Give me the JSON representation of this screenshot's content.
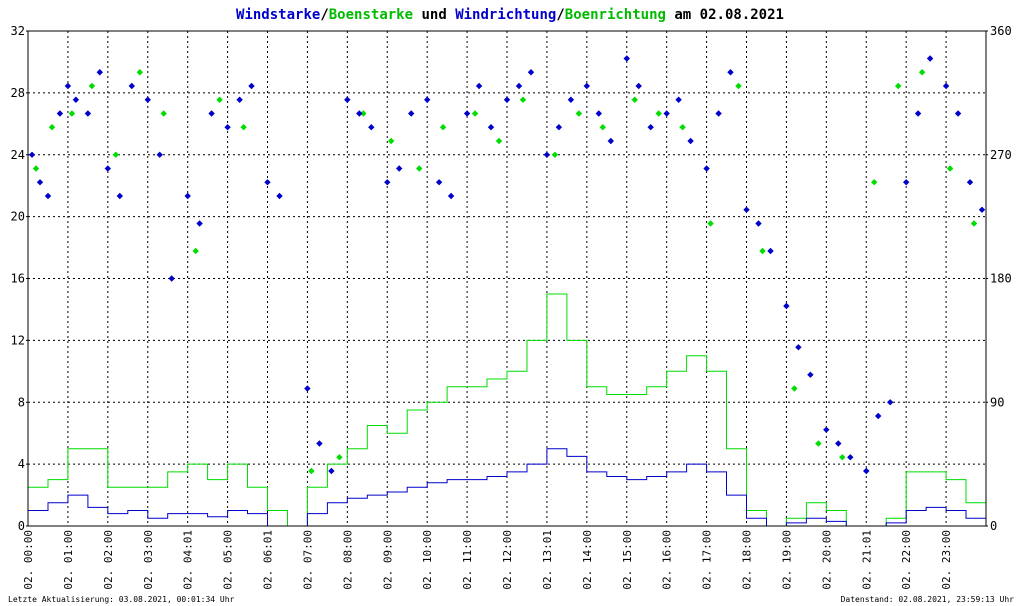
{
  "chart_data": {
    "type": "line",
    "title_parts": [
      {
        "text": "Windstarke",
        "color": "#0000cc"
      },
      {
        "text": "/",
        "color": "#000000"
      },
      {
        "text": "Boenstarke",
        "color": "#00bb00"
      },
      {
        "text": " und ",
        "color": "#000000"
      },
      {
        "text": "Windrichtung",
        "color": "#0000cc"
      },
      {
        "text": "/",
        "color": "#000000"
      },
      {
        "text": "Boenrichtung",
        "color": "#00bb00"
      },
      {
        "text": " am 02.08.2021",
        "color": "#000000"
      }
    ],
    "left_axis": {
      "ticks": [
        "0",
        "4",
        "8",
        "12",
        "16",
        "20",
        "24",
        "28",
        "32"
      ],
      "range": [
        0,
        32
      ]
    },
    "right_axis": {
      "ticks": [
        "0",
        "90",
        "180",
        "270",
        "360"
      ],
      "range": [
        0,
        360
      ]
    },
    "x_ticks": [
      "02. 00:00",
      "02. 01:00",
      "02. 02:00",
      "02. 03:00",
      "02. 04:01",
      "02. 05:00",
      "02. 06:01",
      "02. 07:00",
      "02. 08:00",
      "02. 09:00",
      "02. 10:00",
      "02. 11:00",
      "02. 12:00",
      "02. 13:01",
      "02. 14:00",
      "02. 15:00",
      "02. 16:00",
      "02. 17:00",
      "02. 18:00",
      "02. 19:00",
      "02. 20:00",
      "02. 21:01",
      "02. 22:00",
      "02. 23:00"
    ],
    "x_range_hours": [
      0,
      24
    ],
    "grid": true,
    "colors": {
      "wind": "#0000cc",
      "gust": "#00dd00",
      "grid": "#000000"
    },
    "series": [
      {
        "key": "wind_speed",
        "axis": "left",
        "style": "line",
        "hours": [
          0,
          0.5,
          1,
          1.5,
          2,
          2.5,
          3,
          3.5,
          4,
          4.5,
          5,
          5.5,
          6,
          6.5,
          7,
          7.5,
          8,
          8.5,
          9,
          9.5,
          10,
          10.5,
          11,
          11.5,
          12,
          12.5,
          13,
          13.5,
          14,
          14.5,
          15,
          15.5,
          16,
          16.5,
          17,
          17.5,
          18,
          18.5,
          19,
          19.5,
          20,
          20.5,
          21,
          21.5,
          22,
          22.5,
          23,
          23.5
        ],
        "values": [
          1.0,
          1.5,
          2.0,
          1.2,
          0.8,
          1.0,
          0.5,
          0.8,
          0.8,
          0.6,
          1.0,
          0.8,
          0.0,
          0.0,
          0.8,
          1.5,
          1.8,
          2.0,
          2.2,
          2.5,
          2.8,
          3.0,
          3.0,
          3.2,
          3.5,
          4.0,
          5.0,
          4.5,
          3.5,
          3.2,
          3.0,
          3.2,
          3.5,
          4.0,
          3.5,
          2.0,
          0.5,
          0.0,
          0.2,
          0.5,
          0.3,
          0.0,
          0.0,
          0.2,
          1.0,
          1.2,
          1.0,
          0.5
        ]
      },
      {
        "key": "gust_speed",
        "axis": "left",
        "style": "line",
        "hours": [
          0,
          0.5,
          1,
          1.5,
          2,
          2.5,
          3,
          3.5,
          4,
          4.5,
          5,
          5.5,
          6,
          6.5,
          7,
          7.5,
          8,
          8.5,
          9,
          9.5,
          10,
          10.5,
          11,
          11.5,
          12,
          12.5,
          13,
          13.5,
          14,
          14.5,
          15,
          15.5,
          16,
          16.5,
          17,
          17.5,
          18,
          18.5,
          19,
          19.5,
          20,
          20.5,
          21,
          21.5,
          22,
          22.5,
          23,
          23.5
        ],
        "values": [
          2.5,
          3.0,
          5.0,
          5.0,
          2.5,
          2.5,
          2.5,
          3.5,
          4.0,
          3.0,
          4.0,
          2.5,
          1.0,
          0.0,
          2.5,
          4.0,
          5.0,
          6.5,
          6.0,
          7.5,
          8.0,
          9.0,
          9.0,
          9.5,
          10.0,
          12.0,
          15.0,
          12.0,
          9.0,
          8.5,
          8.5,
          9.0,
          10.0,
          11.0,
          10.0,
          5.0,
          1.0,
          0.0,
          0.5,
          1.5,
          1.0,
          0.0,
          0.0,
          0.5,
          3.5,
          3.5,
          3.0,
          1.5
        ]
      },
      {
        "key": "wind_direction",
        "axis": "right",
        "style": "points",
        "hours": [
          0.1,
          0.3,
          0.5,
          0.8,
          1.0,
          1.2,
          1.5,
          1.8,
          2.0,
          2.3,
          2.6,
          3.0,
          3.3,
          3.6,
          4.0,
          4.3,
          4.6,
          5.0,
          5.3,
          5.6,
          6.0,
          6.3,
          7.0,
          7.3,
          7.6,
          8.0,
          8.3,
          8.6,
          9.0,
          9.3,
          9.6,
          10.0,
          10.3,
          10.6,
          11.0,
          11.3,
          11.6,
          12.0,
          12.3,
          12.6,
          13.0,
          13.3,
          13.6,
          14.0,
          14.3,
          14.6,
          15.0,
          15.3,
          15.6,
          16.0,
          16.3,
          16.6,
          17.0,
          17.3,
          17.6,
          18.0,
          18.3,
          18.6,
          19.0,
          19.3,
          19.6,
          20.0,
          20.3,
          20.6,
          21.0,
          21.3,
          21.6,
          22.0,
          22.3,
          22.6,
          23.0,
          23.3,
          23.6,
          23.9
        ],
        "values": [
          270,
          250,
          240,
          300,
          320,
          310,
          300,
          330,
          260,
          240,
          320,
          310,
          270,
          180,
          240,
          220,
          300,
          290,
          310,
          320,
          250,
          240,
          100,
          60,
          40,
          310,
          300,
          290,
          250,
          260,
          300,
          310,
          250,
          240,
          300,
          320,
          290,
          310,
          320,
          330,
          270,
          290,
          310,
          320,
          300,
          280,
          340,
          320,
          290,
          300,
          310,
          280,
          260,
          300,
          330,
          230,
          220,
          200,
          160,
          130,
          110,
          70,
          60,
          50,
          40,
          80,
          90,
          250,
          300,
          340,
          320,
          300,
          250,
          230
        ]
      },
      {
        "key": "gust_direction",
        "axis": "right",
        "style": "points",
        "hours": [
          0.2,
          0.6,
          1.1,
          1.6,
          2.2,
          2.8,
          3.4,
          4.2,
          4.8,
          5.4,
          7.1,
          7.8,
          8.4,
          9.1,
          9.8,
          10.4,
          11.2,
          11.8,
          12.4,
          13.2,
          13.8,
          14.4,
          15.2,
          15.8,
          16.4,
          17.1,
          17.8,
          18.4,
          19.2,
          19.8,
          20.4,
          21.2,
          21.8,
          22.4,
          23.1,
          23.7
        ],
        "values": [
          260,
          290,
          300,
          320,
          270,
          330,
          300,
          200,
          310,
          290,
          40,
          50,
          300,
          280,
          260,
          290,
          300,
          280,
          310,
          270,
          300,
          290,
          310,
          300,
          290,
          220,
          320,
          200,
          100,
          60,
          50,
          250,
          320,
          330,
          260,
          220
        ]
      }
    ]
  },
  "footer": {
    "last_update": "Letzte Aktualisierung: 03.08.2021, 00:01:34 Uhr",
    "data_as_of": "Datenstand: 02.08.2021, 23:59:13 Uhr"
  }
}
